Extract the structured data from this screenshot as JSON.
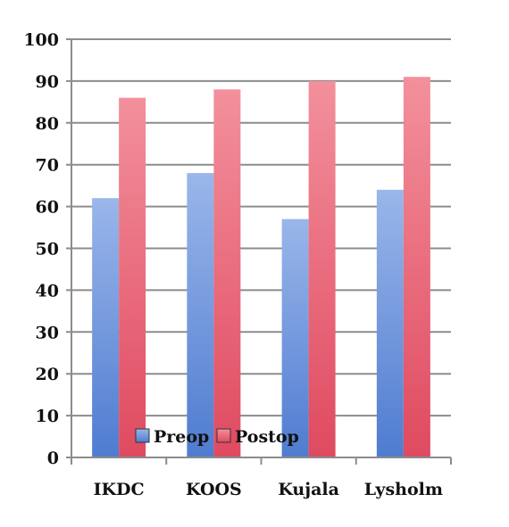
{
  "chart_data": {
    "type": "bar",
    "categories": [
      "IKDC",
      "KOOS",
      "Kujala",
      "Lysholm"
    ],
    "series": [
      {
        "name": "Preop",
        "values": [
          62,
          68,
          57,
          64
        ],
        "color": "#5b86d6"
      },
      {
        "name": "Postop",
        "values": [
          86,
          88,
          90,
          91
        ],
        "color": "#e85a6e"
      }
    ],
    "ylim": [
      0,
      100
    ],
    "yticks": [
      0,
      10,
      20,
      30,
      40,
      50,
      60,
      70,
      80,
      90,
      100
    ],
    "grid": true,
    "legend": "bottom-center-inside"
  }
}
